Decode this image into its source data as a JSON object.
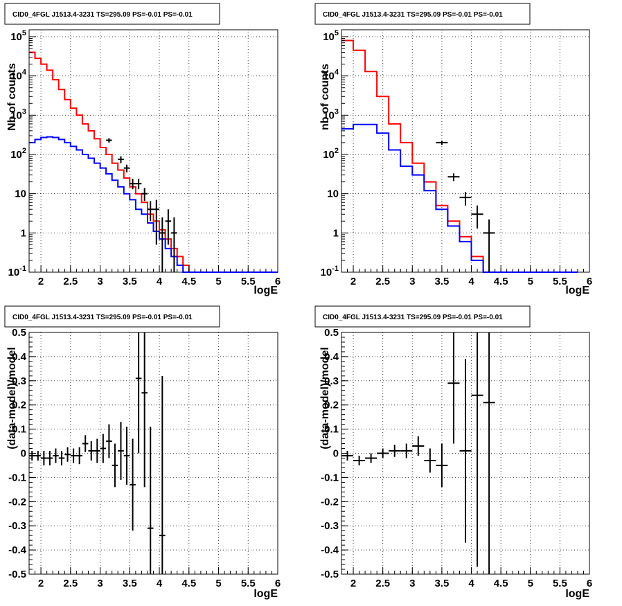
{
  "chart_data": [
    {
      "type": "line",
      "title": "CID0_4FGL J1513.4-3231 TS=295.09 PS=-0.01 PS=-0.01",
      "xlabel": "logE",
      "ylabel": "Nb of counts",
      "yscale": "log",
      "xlim": [
        1.8,
        6.0
      ],
      "ylim": [
        0.1,
        150000
      ],
      "xticks": [
        "2",
        "2.5",
        "3",
        "3.5",
        "4",
        "4.5",
        "5",
        "5.5",
        "6"
      ],
      "yticks": [
        "10^-1",
        "1",
        "10",
        "10^2",
        "10^3",
        "10^4",
        "10^5"
      ],
      "grid": true,
      "bin_edges": [
        1.8,
        1.9,
        2.0,
        2.1,
        2.2,
        2.3,
        2.4,
        2.5,
        2.6,
        2.7,
        2.8,
        2.9,
        3.0,
        3.1,
        3.2,
        3.3,
        3.4,
        3.5,
        3.6,
        3.7,
        3.8,
        3.9,
        4.0,
        4.1,
        4.2,
        4.3,
        4.4,
        4.5,
        4.6,
        4.7,
        4.8,
        4.9,
        5.0,
        5.1,
        5.2,
        5.3,
        5.4,
        5.5,
        5.6,
        5.7,
        5.8,
        5.9,
        6.0
      ],
      "series": [
        {
          "color": "#ff0000",
          "style": "step",
          "values": [
            40000,
            28000,
            20000,
            14000,
            8000,
            4500,
            2500,
            1500,
            1000,
            600,
            400,
            250,
            150,
            100,
            60,
            40,
            25,
            15,
            10,
            6,
            3,
            2,
            1.2,
            0.7,
            0.4,
            0.25,
            0.15,
            0.1,
            0.1,
            0.1,
            0.1,
            0.1,
            0.1,
            0.1,
            0.1,
            0.1,
            0.1,
            0.1,
            0.1,
            0.1,
            0.1,
            0.1
          ]
        },
        {
          "color": "#0000ff",
          "style": "step",
          "values": [
            200,
            240,
            270,
            280,
            270,
            240,
            200,
            160,
            130,
            100,
            80,
            60,
            45,
            32,
            22,
            15,
            10,
            7,
            4,
            3,
            1.8,
            1.1,
            0.7,
            0.4,
            0.25,
            0.15,
            0.1,
            0.1,
            0.1,
            0.1,
            0.1,
            0.1,
            0.1,
            0.1,
            0.1,
            0.1,
            0.1,
            0.1,
            0.1,
            0.1,
            0.1,
            0.1
          ]
        },
        {
          "color": "#000000",
          "style": "errorbar",
          "points": [
            {
              "x": 3.15,
              "y": 230,
              "lo": 200,
              "hi": 260
            },
            {
              "x": 3.35,
              "y": 75,
              "lo": 60,
              "hi": 90
            },
            {
              "x": 3.45,
              "y": 45,
              "lo": 35,
              "hi": 55
            },
            {
              "x": 3.55,
              "y": 18,
              "lo": 13,
              "hi": 24
            },
            {
              "x": 3.65,
              "y": 18,
              "lo": 13,
              "hi": 24
            },
            {
              "x": 3.75,
              "y": 10,
              "lo": 6.5,
              "hi": 14
            },
            {
              "x": 3.85,
              "y": 4,
              "lo": 2,
              "hi": 6.5
            },
            {
              "x": 3.95,
              "y": 4,
              "lo": 0.5,
              "hi": 7
            },
            {
              "x": 4.05,
              "y": 1,
              "lo": 0.1,
              "hi": 2.5
            },
            {
              "x": 4.15,
              "y": 2,
              "lo": 0.5,
              "hi": 4
            },
            {
              "x": 4.25,
              "y": 1,
              "lo": 0.1,
              "hi": 2.5
            }
          ]
        }
      ]
    },
    {
      "type": "line",
      "title": "CID0_4FGL J1513.4-3231 TS=295.09 PS=-0.01 PS=-0.01",
      "xlabel": "logE",
      "ylabel": "nb of counts",
      "yscale": "log",
      "xlim": [
        1.8,
        6.0
      ],
      "ylim": [
        0.1,
        150000
      ],
      "xticks": [
        "2",
        "2.5",
        "3",
        "3.5",
        "4",
        "4.5",
        "5",
        "5.5",
        "6"
      ],
      "yticks": [
        "10^-1",
        "1",
        "10",
        "10^2",
        "10^3",
        "10^4",
        "10^5"
      ],
      "grid": true,
      "bin_edges": [
        1.8,
        2.0,
        2.2,
        2.4,
        2.6,
        2.8,
        3.0,
        3.2,
        3.4,
        3.6,
        3.8,
        4.0,
        4.2,
        4.4,
        4.6,
        4.8,
        5.0,
        5.2,
        5.4,
        5.6,
        5.8,
        6.0
      ],
      "series": [
        {
          "color": "#ff0000",
          "style": "step",
          "values": [
            80000,
            45000,
            13000,
            3000,
            600,
            200,
            60,
            20,
            5,
            2,
            0.8,
            0.25,
            0.1,
            0.1,
            0.1,
            0.1,
            0.1,
            0.1,
            0.1,
            0.1
          ]
        },
        {
          "color": "#0000ff",
          "style": "step",
          "values": [
            450,
            580,
            580,
            350,
            130,
            50,
            30,
            12,
            4,
            1.5,
            0.6,
            0.2,
            0.1,
            0.1,
            0.1,
            0.1,
            0.1,
            0.1,
            0.1,
            0.1
          ]
        },
        {
          "color": "#000000",
          "style": "errorbar",
          "points": [
            {
              "x": 3.5,
              "y": 200,
              "lo": 175,
              "hi": 225
            },
            {
              "x": 3.7,
              "y": 27,
              "lo": 21,
              "hi": 33
            },
            {
              "x": 3.9,
              "y": 8,
              "lo": 5,
              "hi": 11
            },
            {
              "x": 4.1,
              "y": 3,
              "lo": 1.3,
              "hi": 5
            },
            {
              "x": 4.3,
              "y": 1,
              "lo": 0.1,
              "hi": 2.2
            }
          ]
        }
      ]
    },
    {
      "type": "scatter",
      "title": "CID0_4FGL J1513.4-3231 TS=295.09 PS=-0.01 PS=-0.01",
      "xlabel": "logE",
      "ylabel": "(data-model)/model",
      "xlim": [
        1.8,
        6.0
      ],
      "ylim": [
        -0.5,
        0.5
      ],
      "xticks": [
        "2",
        "2.5",
        "3",
        "3.5",
        "4",
        "4.5",
        "5",
        "5.5",
        "6"
      ],
      "yticks": [
        "-0.5",
        "-0.4",
        "-0.3",
        "-0.2",
        "-0.1",
        "0",
        "0.1",
        "0.2",
        "0.3",
        "0.4",
        "0.5"
      ],
      "grid": true,
      "xerr": 0.05,
      "points": [
        {
          "x": 1.85,
          "y": -0.01,
          "err": 0.02
        },
        {
          "x": 1.95,
          "y": -0.01,
          "err": 0.02
        },
        {
          "x": 2.05,
          "y": -0.02,
          "err": 0.03
        },
        {
          "x": 2.15,
          "y": -0.02,
          "err": 0.03
        },
        {
          "x": 2.25,
          "y": -0.01,
          "err": 0.03
        },
        {
          "x": 2.35,
          "y": -0.02,
          "err": 0.03
        },
        {
          "x": 2.45,
          "y": -0.005,
          "err": 0.03
        },
        {
          "x": 2.55,
          "y": -0.01,
          "err": 0.03
        },
        {
          "x": 2.65,
          "y": -0.01,
          "err": 0.035
        },
        {
          "x": 2.75,
          "y": 0.04,
          "err": 0.035
        },
        {
          "x": 2.85,
          "y": 0.01,
          "err": 0.04
        },
        {
          "x": 2.95,
          "y": 0.01,
          "err": 0.05
        },
        {
          "x": 3.05,
          "y": 0.02,
          "err": 0.06
        },
        {
          "x": 3.15,
          "y": 0.05,
          "err": 0.07
        },
        {
          "x": 3.25,
          "y": -0.05,
          "err": 0.09
        },
        {
          "x": 3.35,
          "y": 0.01,
          "err": 0.12
        },
        {
          "x": 3.45,
          "y": -0.01,
          "err": 0.12
        },
        {
          "x": 3.55,
          "y": -0.13,
          "err": 0.19
        },
        {
          "x": 3.65,
          "y": 0.31,
          "err": 0.31
        },
        {
          "x": 3.75,
          "y": 0.25,
          "err": 0.39
        },
        {
          "x": 3.85,
          "y": -0.31,
          "err": 0.42
        },
        {
          "x": 4.05,
          "y": -0.34,
          "err": 0.66
        }
      ]
    },
    {
      "type": "scatter",
      "title": "CID0_4FGL J1513.4-3231 TS=295.09 PS=-0.01 PS=-0.01",
      "xlabel": "logE",
      "ylabel": "(data-model)/model",
      "xlim": [
        1.8,
        6.0
      ],
      "ylim": [
        -0.5,
        0.5
      ],
      "xticks": [
        "2",
        "2.5",
        "3",
        "3.5",
        "4",
        "4.5",
        "5",
        "5.5",
        "6"
      ],
      "yticks": [
        "-0.5",
        "-0.4",
        "-0.3",
        "-0.2",
        "-0.1",
        "0",
        "0.1",
        "0.2",
        "0.3",
        "0.4",
        "0.5"
      ],
      "grid": true,
      "xerr": 0.1,
      "points": [
        {
          "x": 1.9,
          "y": -0.01,
          "err": 0.02
        },
        {
          "x": 2.1,
          "y": -0.03,
          "err": 0.02
        },
        {
          "x": 2.3,
          "y": -0.02,
          "err": 0.02
        },
        {
          "x": 2.5,
          "y": 0.0,
          "err": 0.02
        },
        {
          "x": 2.7,
          "y": 0.01,
          "err": 0.025
        },
        {
          "x": 2.9,
          "y": 0.01,
          "err": 0.03
        },
        {
          "x": 3.1,
          "y": 0.03,
          "err": 0.04
        },
        {
          "x": 3.3,
          "y": -0.03,
          "err": 0.05
        },
        {
          "x": 3.5,
          "y": -0.05,
          "err": 0.09
        },
        {
          "x": 3.7,
          "y": 0.29,
          "err": 0.25
        },
        {
          "x": 3.9,
          "y": 0.01,
          "err": 0.38
        },
        {
          "x": 4.1,
          "y": 0.24,
          "err": 0.71
        },
        {
          "x": 4.3,
          "y": 0.21,
          "err": 0.85
        }
      ]
    }
  ]
}
